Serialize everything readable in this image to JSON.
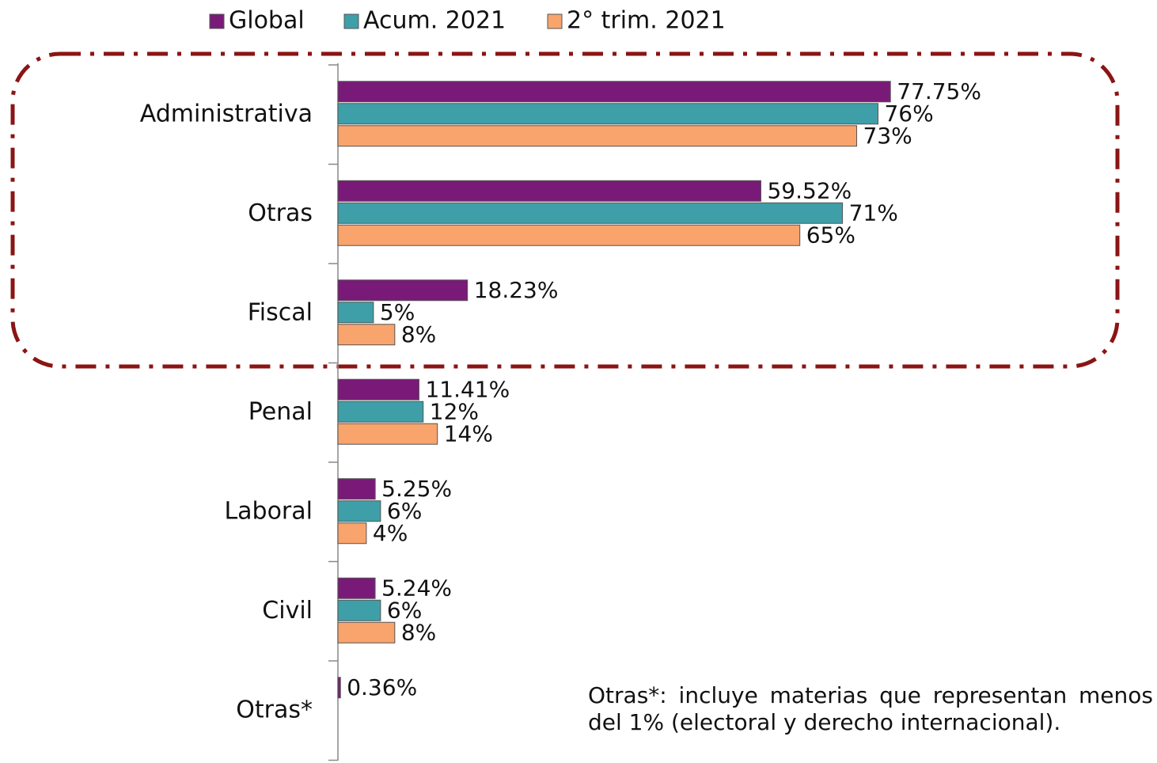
{
  "chart_data": {
    "type": "bar",
    "orientation": "horizontal",
    "categories": [
      "Administrativa",
      "Otras",
      "Fiscal",
      "Penal",
      "Laboral",
      "Civil",
      "Otras*"
    ],
    "series": [
      {
        "name": "Global",
        "color": "#7a1a78",
        "values": [
          77.75,
          59.52,
          18.23,
          11.41,
          5.25,
          5.24,
          0.36
        ],
        "value_labels": [
          "77.75%",
          "59.52%",
          "18.23%",
          "11.41%",
          "5.25%",
          "5.24%",
          "0.36%"
        ]
      },
      {
        "name": "Acum. 2021",
        "color": "#3e9fa8",
        "values": [
          76,
          71,
          5,
          12,
          6,
          6,
          null
        ],
        "value_labels": [
          "76%",
          "71%",
          "5%",
          "12%",
          "6%",
          "6%",
          null
        ]
      },
      {
        "name": "2° trim. 2021",
        "color": "#f8a46c",
        "values": [
          73,
          65,
          8,
          14,
          4,
          8,
          null
        ],
        "value_labels": [
          "73%",
          "65%",
          "8%",
          "14%",
          "4%",
          "8%",
          null
        ]
      }
    ],
    "xlim": [
      0,
      100
    ],
    "annotation": "Otras*: incluye materias que representan menos del 1% (electoral y derecho internacional)."
  }
}
